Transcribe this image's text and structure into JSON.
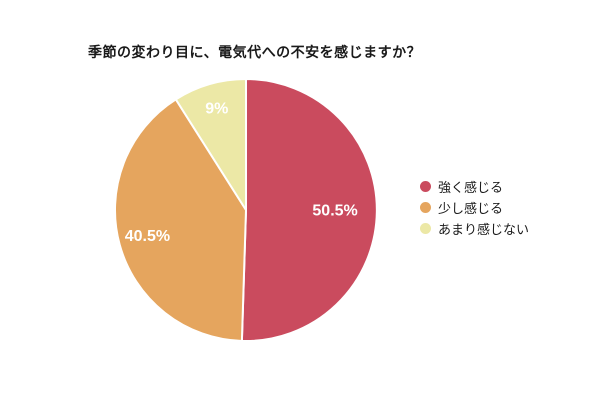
{
  "title": "季節の変わり目に、電気代への不安を感じますか？",
  "chart_data": {
    "type": "pie",
    "title": "季節の変わり目に、電気代への不安を感じますか？",
    "slices": [
      {
        "label": "強く感じる",
        "value": 50.5,
        "display": "50.5%",
        "color": "#CA4B5E"
      },
      {
        "label": "少し感じる",
        "value": 40.5,
        "display": "40.5%",
        "color": "#E5A55E"
      },
      {
        "label": "あまり感じない",
        "value": 9,
        "display": "9%",
        "color": "#ECE8A6"
      }
    ],
    "start_angle_deg": 0,
    "direction": "clockwise",
    "legend_position": "right",
    "slice_label_color": "#FFFFFF",
    "slice_border_color": "#FFFFFF",
    "background": "#FFFFFF"
  }
}
